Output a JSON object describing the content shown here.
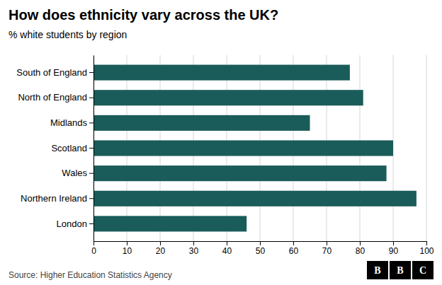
{
  "chart_data": {
    "type": "bar",
    "orientation": "horizontal",
    "title": "How does ethnicity vary across the UK?",
    "subtitle": "% white students by region",
    "categories": [
      "South of England",
      "North of England",
      "Midlands",
      "Scotland",
      "Wales",
      "Northern Ireland",
      "London"
    ],
    "values": [
      77,
      81,
      65,
      90,
      88,
      97,
      46
    ],
    "color": "#1a5c5a",
    "xlim": [
      0,
      100
    ],
    "xticks": [
      0,
      10,
      20,
      30,
      40,
      50,
      60,
      70,
      80,
      90,
      100
    ],
    "grid": true,
    "source": "Source: Higher Education Statistics Agency",
    "logo": [
      "B",
      "B",
      "C"
    ]
  }
}
